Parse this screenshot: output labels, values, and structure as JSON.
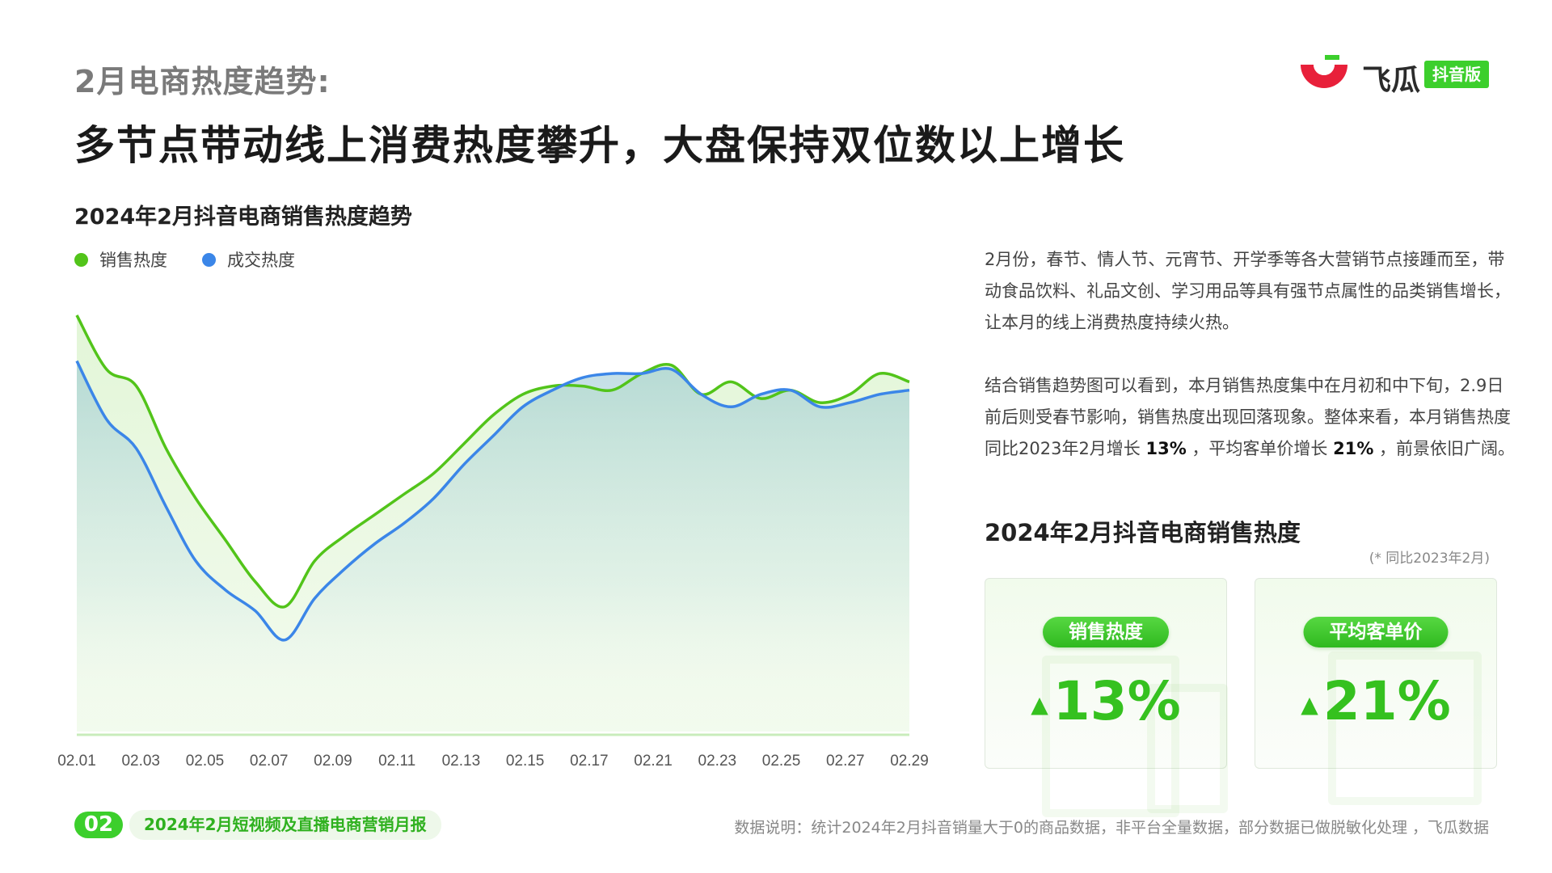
{
  "header": {
    "subtitle": "2月电商热度趋势:",
    "headline": "多节点带动线上消费热度攀升，大盘保持双位数以上增长"
  },
  "logo": {
    "brand": "飞瓜",
    "tag": "抖音版"
  },
  "chart_title": "2024年2月抖音电商销售热度趋势",
  "chart_data": {
    "type": "area",
    "legend_position": "top-left",
    "grid": false,
    "x_tick_labels": [
      "02.01",
      "02.03",
      "02.05",
      "02.07",
      "02.09",
      "02.11",
      "02.13",
      "02.15",
      "02.17",
      "02.21",
      "02.23",
      "02.25",
      "02.27",
      "02.29"
    ],
    "x": [
      "02.01",
      "02.02",
      "02.03",
      "02.04",
      "02.05",
      "02.06",
      "02.07",
      "02.08",
      "02.09",
      "02.10",
      "02.11",
      "02.12",
      "02.13",
      "02.14",
      "02.15",
      "02.16",
      "02.17",
      "02.18",
      "02.19",
      "02.20",
      "02.21",
      "02.22",
      "02.23",
      "02.24",
      "02.25",
      "02.26",
      "02.27",
      "02.28",
      "02.29"
    ],
    "ylim": [
      0,
      100
    ],
    "series": [
      {
        "name": "销售热度",
        "color": "#52c41a",
        "values": [
          100,
          87,
          83,
          68,
          56,
          46,
          36,
          30,
          41,
          47,
          52,
          57,
          62,
          69,
          76,
          81,
          83,
          83,
          82,
          86,
          88,
          81,
          84,
          80,
          82,
          79,
          81,
          86,
          84
        ]
      },
      {
        "name": "成交热度",
        "color": "#3b86e8",
        "values": [
          89,
          75,
          68,
          54,
          41,
          34,
          29,
          22,
          32,
          39,
          45,
          50,
          56,
          64,
          71,
          78,
          82,
          85,
          86,
          86,
          87,
          81,
          78,
          81,
          82,
          78,
          79,
          81,
          82
        ]
      }
    ]
  },
  "text": {
    "para1": "2月份，春节、情人节、元宵节、开学季等各大营销节点接踵而至，带动食品饮料、礼品文创、学习用品等具有强节点属性的品类销售增长，让本月的线上消费热度持续火热。",
    "para2_a": "结合销售趋势图可以看到，本月销售热度集中在月初和中下旬，2.9日前后则受春节影响，销售热度出现回落现象。整体来看，本月销售热度同比2023年2月增长 ",
    "para2_b": "13%",
    "para2_c": " ，平均客单价增长 ",
    "para2_d": "21%",
    "para2_e": " ，前景依旧广阔。"
  },
  "cards_title": "2024年2月抖音电商销售热度",
  "cards_note": "(* 同比2023年2月)",
  "cards": [
    {
      "label": "销售热度",
      "value": "13%",
      "trend": "▲"
    },
    {
      "label": "平均客单价",
      "value": "21%",
      "trend": "▲"
    }
  ],
  "footer": {
    "page": "02",
    "report": "2024年2月短视频及直播电商营销月报",
    "note": "数据说明：统计2024年2月抖音销量大于0的商品数据，非平台全量数据，部分数据已做脱敏化处理 ，飞瓜数据"
  }
}
